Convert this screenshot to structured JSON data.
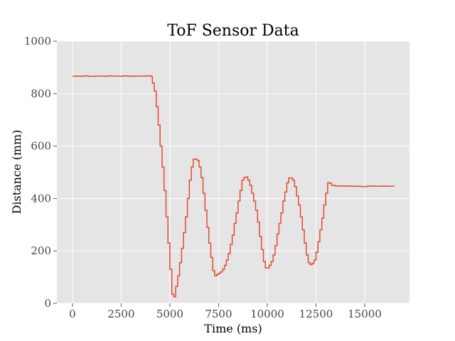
{
  "chart_data": {
    "type": "line",
    "title": "ToF Sensor Data",
    "xlabel": "Time (ms)",
    "ylabel": "Distance (mm)",
    "xlim": [
      -800,
      17300
    ],
    "ylim": [
      0,
      1000
    ],
    "xticks": [
      0,
      2500,
      5000,
      7500,
      10000,
      12500,
      15000
    ],
    "yticks": [
      0,
      200,
      400,
      600,
      800,
      1000
    ],
    "grid": true,
    "background": "#e5e5e5",
    "grid_color": "#ffffff",
    "line_color": "#e24a33",
    "series": [
      {
        "x": [
          0,
          200,
          400,
          600,
          800,
          1000,
          1200,
          1400,
          1600,
          1800,
          2000,
          2200,
          2400,
          2600,
          2800,
          3000,
          3200,
          3400,
          3600,
          3800,
          4000,
          4100,
          4200,
          4300,
          4400,
          4500,
          4600,
          4700,
          4800,
          4900,
          5000,
          5100,
          5200,
          5300,
          5400,
          5500,
          5600,
          5700,
          5800,
          5900,
          6000,
          6100,
          6200,
          6300,
          6400,
          6500,
          6600,
          6700,
          6800,
          6900,
          7000,
          7100,
          7200,
          7300,
          7400,
          7500,
          7600,
          7700,
          7800,
          7900,
          8000,
          8100,
          8200,
          8300,
          8400,
          8500,
          8600,
          8700,
          8800,
          8900,
          9000,
          9100,
          9200,
          9300,
          9400,
          9500,
          9600,
          9700,
          9800,
          9900,
          10000,
          10100,
          10200,
          10300,
          10400,
          10500,
          10600,
          10700,
          10800,
          10900,
          11000,
          11100,
          11200,
          11300,
          11400,
          11500,
          11600,
          11700,
          11800,
          11900,
          12000,
          12100,
          12200,
          12300,
          12400,
          12500,
          12600,
          12700,
          12800,
          12900,
          13000,
          13100,
          13200,
          13300,
          13500,
          13700,
          13900,
          14100,
          14300,
          14500,
          14700,
          14900,
          15100,
          15300,
          15500,
          15700,
          15900,
          16100,
          16300,
          16500
        ],
        "y": [
          866,
          867,
          866,
          868,
          866,
          866,
          867,
          867,
          866,
          868,
          867,
          867,
          866,
          868,
          867,
          866,
          867,
          867,
          867,
          868,
          866,
          840,
          810,
          750,
          680,
          600,
          520,
          430,
          330,
          230,
          130,
          35,
          25,
          65,
          105,
          155,
          210,
          270,
          330,
          400,
          470,
          520,
          550,
          550,
          545,
          520,
          480,
          420,
          355,
          290,
          230,
          175,
          125,
          105,
          110,
          115,
          120,
          130,
          145,
          165,
          190,
          225,
          260,
          305,
          345,
          390,
          430,
          470,
          480,
          482,
          470,
          450,
          420,
          390,
          355,
          310,
          255,
          205,
          160,
          135,
          135,
          145,
          160,
          185,
          220,
          265,
          305,
          345,
          390,
          425,
          460,
          478,
          478,
          470,
          445,
          410,
          375,
          330,
          280,
          230,
          185,
          155,
          148,
          152,
          165,
          195,
          235,
          280,
          325,
          375,
          420,
          460,
          458,
          450,
          448,
          448,
          447,
          448,
          447,
          447,
          446,
          445,
          447,
          448,
          447,
          447,
          448,
          447,
          447,
          448
        ]
      }
    ]
  }
}
